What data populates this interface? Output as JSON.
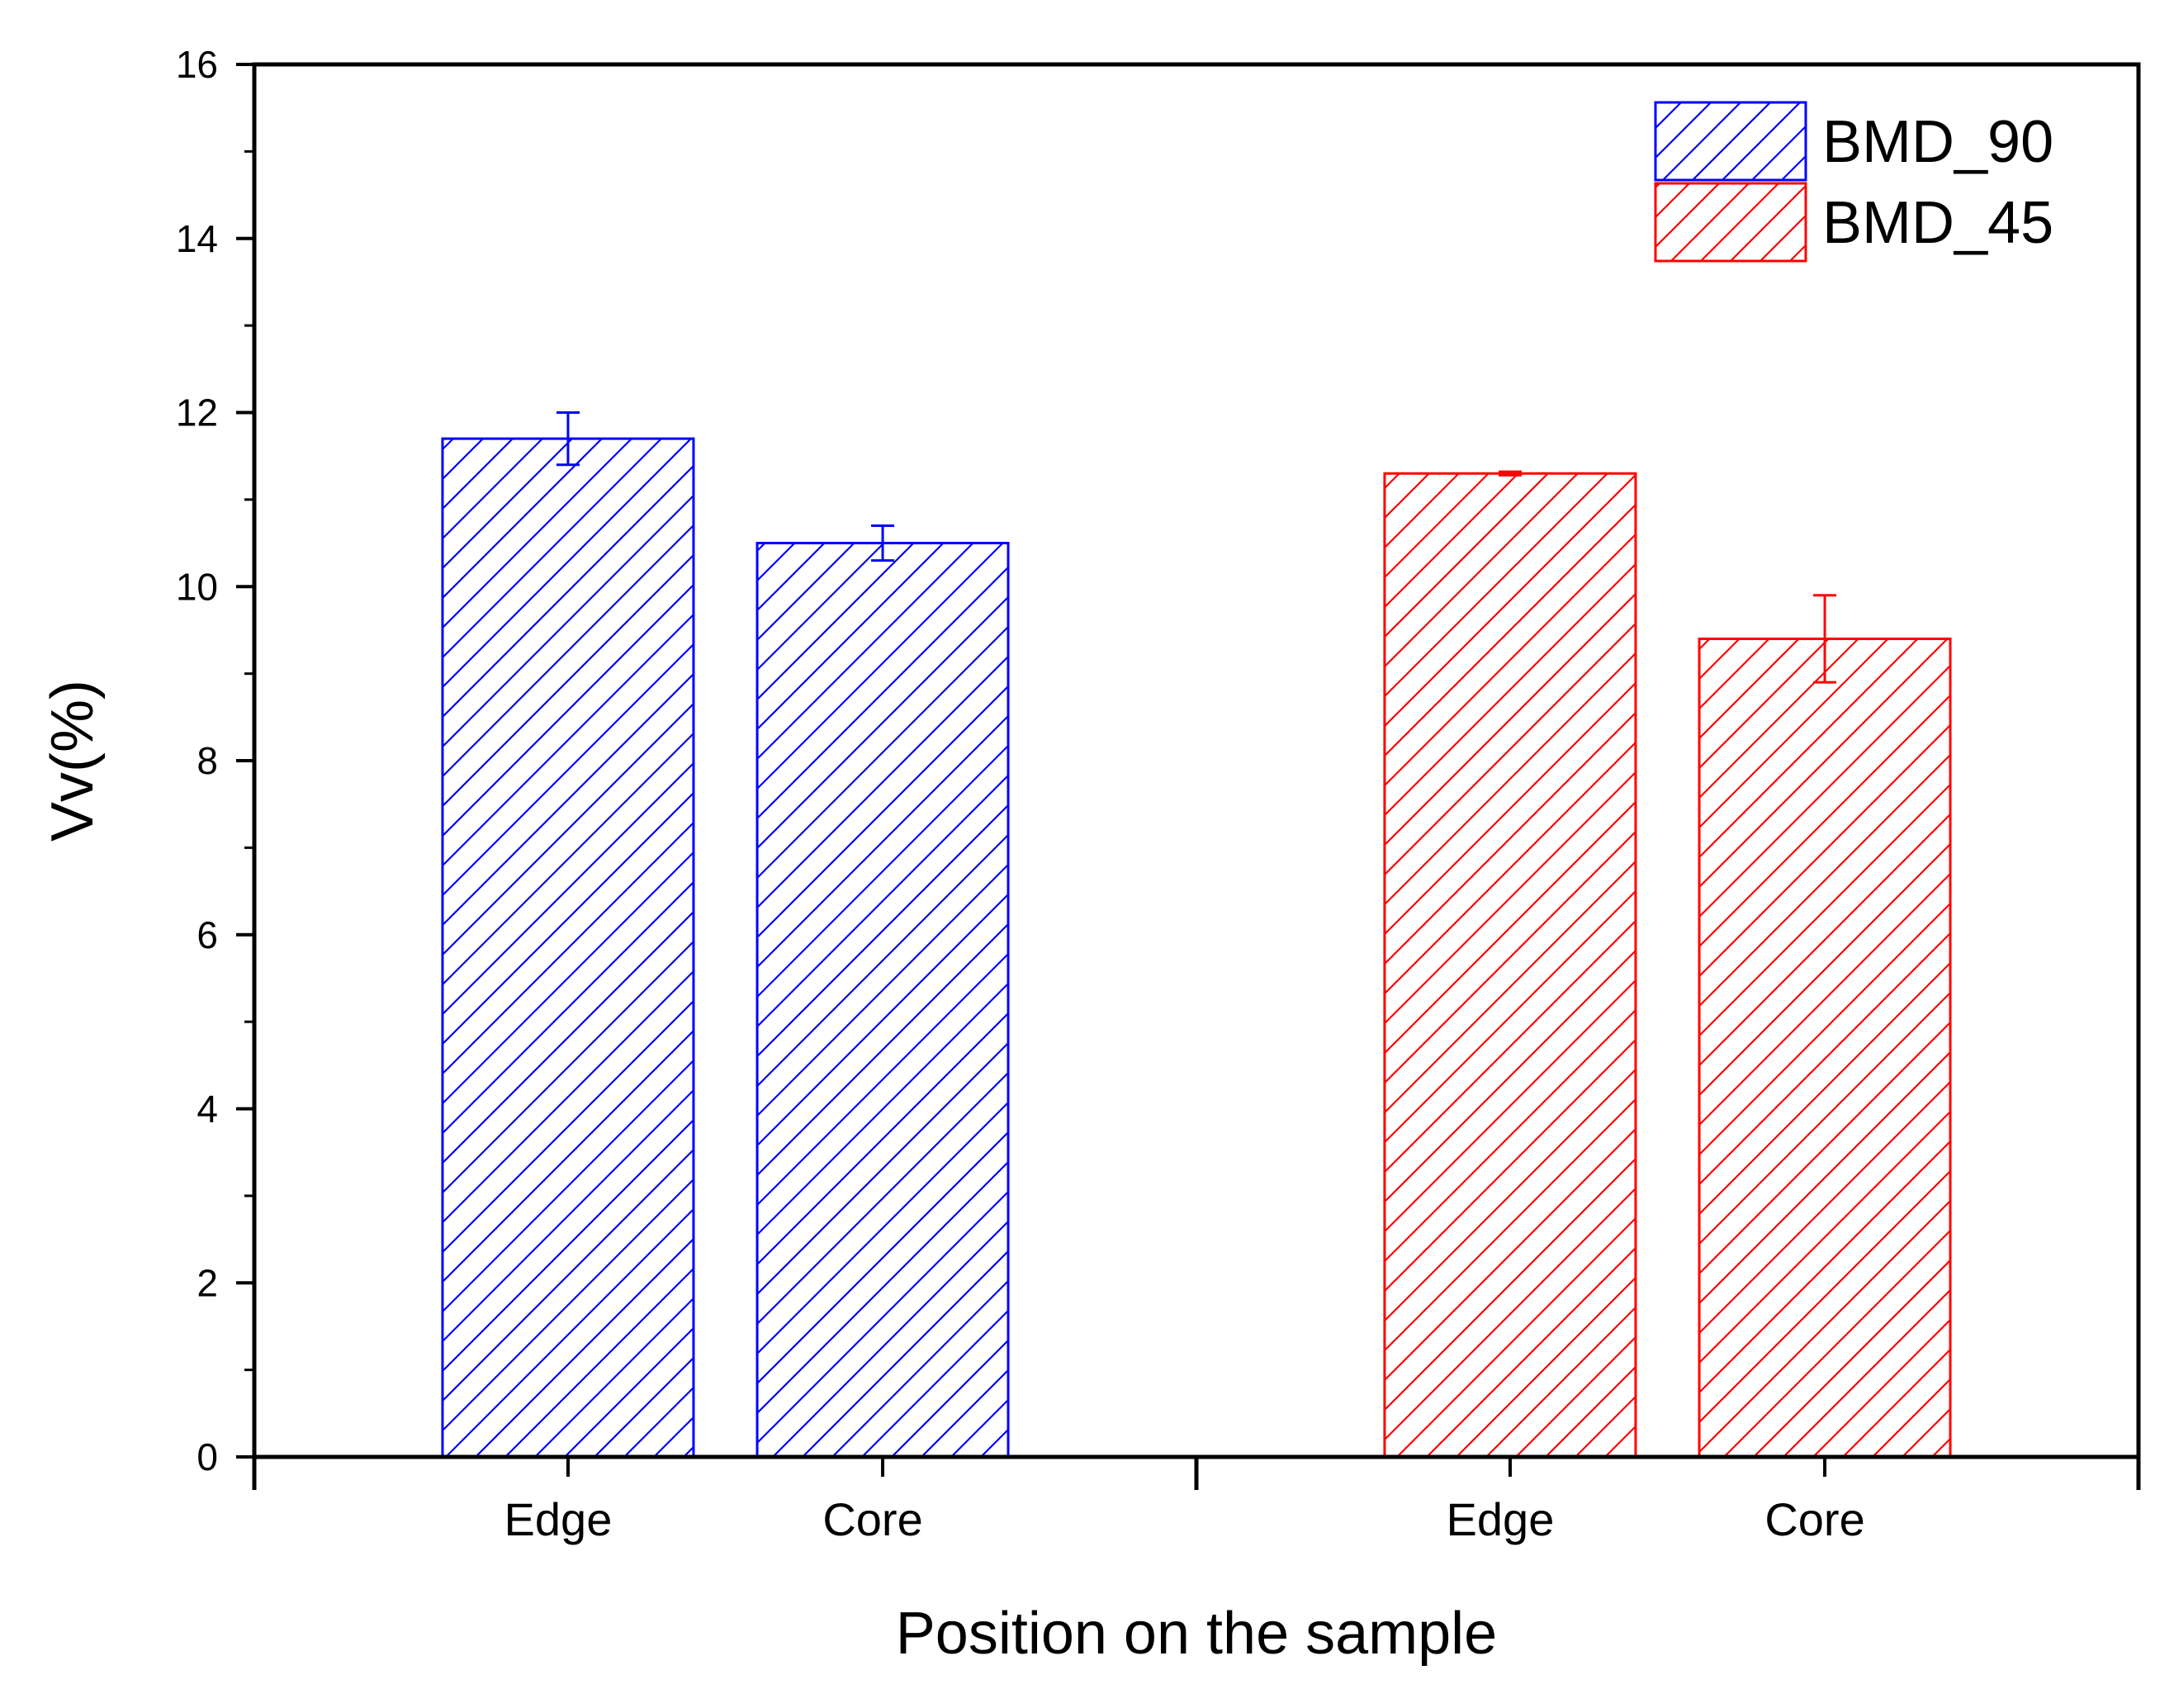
{
  "chart_data": {
    "type": "bar",
    "title": "",
    "xlabel": "Position on the sample",
    "ylabel": "Vv(%)",
    "ylim": [
      0,
      16
    ],
    "yticks": [
      0,
      2,
      4,
      6,
      8,
      10,
      12,
      14,
      16
    ],
    "grid": false,
    "legend_position": "top-right",
    "series": [
      {
        "name": "BMD_90",
        "color": "#0000ff",
        "categories": [
          "Edge",
          "Core"
        ],
        "values": [
          11.7,
          10.5
        ],
        "errors": [
          0.3,
          0.2
        ]
      },
      {
        "name": "BMD_45",
        "color": "#ff0000",
        "categories": [
          "Edge",
          "Core"
        ],
        "values": [
          11.3,
          9.4
        ],
        "errors": [
          0.02,
          0.5
        ]
      }
    ]
  }
}
